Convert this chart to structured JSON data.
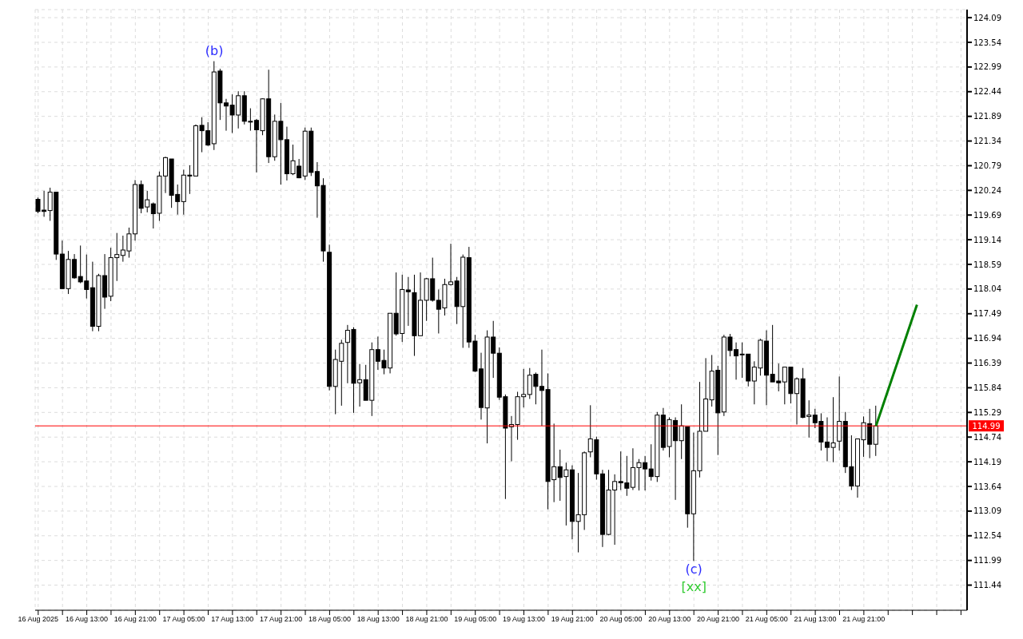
{
  "chart_data": {
    "type": "candlestick",
    "x": [
      "2025-08-16T05:00",
      "2025-08-16T06:00",
      "2025-08-16T07:00",
      "2025-08-16T08:00",
      "2025-08-16T09:00",
      "2025-08-16T10:00",
      "2025-08-16T11:00",
      "2025-08-16T12:00",
      "2025-08-16T13:00",
      "2025-08-16T14:00",
      "2025-08-16T15:00",
      "2025-08-16T16:00",
      "2025-08-16T17:00",
      "2025-08-16T18:00",
      "2025-08-16T19:00",
      "2025-08-16T20:00",
      "2025-08-16T21:00",
      "2025-08-16T22:00",
      "2025-08-16T23:00",
      "2025-08-17T00:00",
      "2025-08-17T01:00",
      "2025-08-17T02:00",
      "2025-08-17T03:00",
      "2025-08-17T04:00",
      "2025-08-17T05:00",
      "2025-08-17T06:00",
      "2025-08-17T07:00",
      "2025-08-17T08:00",
      "2025-08-17T09:00",
      "2025-08-17T10:00",
      "2025-08-17T11:00",
      "2025-08-17T12:00",
      "2025-08-17T13:00",
      "2025-08-17T14:00",
      "2025-08-17T15:00",
      "2025-08-17T16:00",
      "2025-08-17T17:00",
      "2025-08-17T18:00",
      "2025-08-17T19:00",
      "2025-08-17T20:00",
      "2025-08-17T21:00",
      "2025-08-17T22:00",
      "2025-08-17T23:00",
      "2025-08-18T00:00",
      "2025-08-18T01:00",
      "2025-08-18T02:00",
      "2025-08-18T03:00",
      "2025-08-18T04:00",
      "2025-08-18T05:00",
      "2025-08-18T06:00",
      "2025-08-18T07:00",
      "2025-08-18T08:00",
      "2025-08-18T09:00",
      "2025-08-18T10:00",
      "2025-08-18T11:00",
      "2025-08-18T12:00",
      "2025-08-18T13:00",
      "2025-08-18T14:00",
      "2025-08-18T15:00",
      "2025-08-18T16:00",
      "2025-08-18T17:00",
      "2025-08-18T18:00",
      "2025-08-18T19:00",
      "2025-08-18T20:00",
      "2025-08-18T21:00",
      "2025-08-18T22:00",
      "2025-08-18T23:00",
      "2025-08-19T00:00",
      "2025-08-19T01:00",
      "2025-08-19T02:00",
      "2025-08-19T03:00",
      "2025-08-19T04:00",
      "2025-08-19T05:00",
      "2025-08-19T06:00",
      "2025-08-19T07:00",
      "2025-08-19T08:00",
      "2025-08-19T09:00",
      "2025-08-19T10:00",
      "2025-08-19T11:00",
      "2025-08-19T12:00",
      "2025-08-19T13:00",
      "2025-08-19T14:00",
      "2025-08-19T15:00",
      "2025-08-19T16:00",
      "2025-08-19T17:00",
      "2025-08-19T18:00",
      "2025-08-19T19:00",
      "2025-08-19T20:00",
      "2025-08-19T21:00",
      "2025-08-19T22:00",
      "2025-08-19T23:00",
      "2025-08-20T00:00",
      "2025-08-20T01:00",
      "2025-08-20T02:00",
      "2025-08-20T03:00",
      "2025-08-20T04:00",
      "2025-08-20T05:00",
      "2025-08-20T06:00",
      "2025-08-20T07:00",
      "2025-08-20T08:00",
      "2025-08-20T09:00",
      "2025-08-20T10:00",
      "2025-08-20T11:00",
      "2025-08-20T12:00",
      "2025-08-20T13:00",
      "2025-08-20T14:00",
      "2025-08-20T15:00",
      "2025-08-20T16:00",
      "2025-08-20T17:00",
      "2025-08-20T18:00",
      "2025-08-20T19:00",
      "2025-08-20T20:00",
      "2025-08-20T21:00",
      "2025-08-20T22:00",
      "2025-08-20T23:00",
      "2025-08-21T00:00",
      "2025-08-21T01:00",
      "2025-08-21T02:00",
      "2025-08-21T03:00",
      "2025-08-21T04:00",
      "2025-08-21T05:00",
      "2025-08-21T06:00",
      "2025-08-21T07:00",
      "2025-08-21T08:00",
      "2025-08-21T09:00",
      "2025-08-21T10:00",
      "2025-08-21T11:00",
      "2025-08-21T12:00",
      "2025-08-21T13:00",
      "2025-08-21T14:00",
      "2025-08-21T15:00",
      "2025-08-21T16:00",
      "2025-08-21T17:00",
      "2025-08-21T18:00",
      "2025-08-21T19:00",
      "2025-08-21T20:00",
      "2025-08-21T21:00",
      "2025-08-21T22:00",
      "2025-08-21T23:00"
    ],
    "ohlc": [
      [
        120.04,
        120.08,
        119.73,
        119.77
      ],
      [
        119.8,
        120.23,
        119.65,
        119.77
      ],
      [
        119.79,
        120.3,
        119.56,
        120.2
      ],
      [
        120.2,
        120.2,
        118.69,
        118.82
      ],
      [
        118.82,
        119.12,
        118.05,
        118.05
      ],
      [
        118.05,
        118.89,
        117.93,
        118.7
      ],
      [
        118.7,
        118.82,
        118.27,
        118.29
      ],
      [
        118.32,
        119.01,
        118.17,
        118.2
      ],
      [
        118.22,
        118.81,
        117.83,
        118.03
      ],
      [
        118.07,
        118.65,
        117.1,
        117.21
      ],
      [
        117.21,
        118.38,
        117.1,
        118.34
      ],
      [
        118.34,
        118.82,
        117.6,
        117.86
      ],
      [
        117.88,
        118.96,
        117.77,
        118.74
      ],
      [
        118.74,
        119.29,
        118.22,
        118.81
      ],
      [
        118.79,
        119.23,
        118.65,
        118.91
      ],
      [
        118.89,
        119.41,
        118.74,
        119.27
      ],
      [
        119.27,
        120.47,
        119.12,
        120.37
      ],
      [
        120.37,
        120.46,
        119.73,
        119.84
      ],
      [
        119.87,
        120.23,
        119.75,
        120.03
      ],
      [
        119.94,
        119.97,
        119.39,
        119.72
      ],
      [
        119.73,
        120.66,
        119.56,
        120.56
      ],
      [
        120.56,
        120.99,
        120.18,
        120.97
      ],
      [
        120.94,
        120.94,
        119.85,
        120.13
      ],
      [
        120.15,
        120.37,
        119.7,
        119.99
      ],
      [
        119.99,
        120.7,
        119.7,
        120.58
      ],
      [
        120.58,
        120.8,
        120.16,
        120.56
      ],
      [
        120.56,
        121.71,
        120.56,
        121.68
      ],
      [
        121.69,
        121.87,
        121.09,
        121.57
      ],
      [
        121.57,
        121.76,
        121.23,
        121.25
      ],
      [
        121.28,
        123.12,
        121.14,
        122.88
      ],
      [
        122.9,
        122.95,
        121.81,
        122.19
      ],
      [
        122.19,
        122.28,
        121.57,
        122.12
      ],
      [
        122.14,
        122.38,
        121.52,
        121.92
      ],
      [
        121.92,
        122.45,
        121.62,
        122.35
      ],
      [
        122.35,
        122.45,
        121.71,
        121.78
      ],
      [
        121.78,
        122.07,
        121.57,
        121.78
      ],
      [
        121.8,
        121.83,
        120.64,
        121.59
      ],
      [
        121.57,
        122.29,
        121.47,
        122.28
      ],
      [
        122.28,
        122.93,
        120.85,
        120.99
      ],
      [
        120.99,
        121.93,
        120.9,
        121.78
      ],
      [
        121.78,
        122.19,
        120.37,
        121.37
      ],
      [
        121.37,
        121.66,
        120.46,
        120.61
      ],
      [
        120.61,
        121.26,
        120.58,
        120.9
      ],
      [
        120.78,
        120.94,
        120.51,
        120.52
      ],
      [
        120.56,
        121.64,
        120.47,
        121.56
      ],
      [
        121.56,
        121.64,
        120.56,
        120.64
      ],
      [
        120.66,
        120.87,
        119.63,
        120.34
      ],
      [
        120.35,
        120.51,
        118.65,
        118.89
      ],
      [
        118.86,
        119.03,
        115.78,
        115.87
      ],
      [
        115.87,
        116.69,
        115.25,
        116.47
      ],
      [
        116.43,
        116.91,
        115.44,
        116.83
      ],
      [
        116.85,
        117.24,
        115.94,
        117.12
      ],
      [
        117.14,
        117.19,
        115.28,
        115.94
      ],
      [
        115.95,
        116.37,
        115.42,
        116.02
      ],
      [
        116.02,
        116.35,
        115.56,
        115.56
      ],
      [
        115.56,
        116.85,
        115.21,
        116.69
      ],
      [
        116.69,
        116.98,
        116.24,
        116.43
      ],
      [
        116.45,
        116.69,
        116.14,
        116.28
      ],
      [
        116.28,
        117.5,
        116.16,
        117.5
      ],
      [
        117.5,
        118.41,
        117.0,
        117.04
      ],
      [
        117.05,
        118.36,
        116.86,
        118.03
      ],
      [
        118.02,
        118.31,
        117.22,
        117.98
      ],
      [
        117.96,
        118.36,
        116.55,
        117.0
      ],
      [
        117.0,
        118.41,
        117.0,
        117.79
      ],
      [
        117.79,
        118.29,
        117.33,
        118.27
      ],
      [
        118.27,
        118.74,
        117.76,
        117.79
      ],
      [
        117.79,
        118.03,
        117.05,
        117.59
      ],
      [
        117.62,
        118.27,
        117.45,
        118.14
      ],
      [
        118.14,
        119.05,
        118.12,
        118.2
      ],
      [
        118.22,
        118.31,
        117.26,
        117.65
      ],
      [
        117.65,
        118.81,
        116.73,
        118.75
      ],
      [
        118.74,
        118.98,
        116.73,
        116.86
      ],
      [
        116.88,
        117.02,
        116.19,
        116.21
      ],
      [
        116.26,
        116.62,
        115.13,
        115.4
      ],
      [
        115.39,
        117.12,
        114.6,
        116.97
      ],
      [
        116.97,
        117.33,
        116.06,
        116.61
      ],
      [
        116.61,
        116.74,
        115.57,
        115.63
      ],
      [
        115.64,
        115.69,
        113.36,
        114.94
      ],
      [
        114.97,
        115.21,
        114.2,
        115.02
      ],
      [
        115.02,
        115.75,
        114.68,
        115.64
      ],
      [
        115.64,
        116.26,
        115.4,
        115.69
      ],
      [
        115.69,
        116.28,
        115.59,
        116.12
      ],
      [
        116.14,
        116.18,
        115.47,
        115.87
      ],
      [
        115.87,
        116.69,
        114.99,
        115.78
      ],
      [
        115.8,
        116.16,
        113.13,
        113.75
      ],
      [
        113.79,
        115.04,
        113.29,
        114.08
      ],
      [
        114.08,
        114.46,
        113.32,
        113.84
      ],
      [
        113.86,
        114.17,
        112.77,
        114.01
      ],
      [
        114.01,
        114.11,
        112.46,
        112.86
      ],
      [
        112.86,
        113.94,
        112.17,
        113.01
      ],
      [
        113.01,
        114.42,
        112.67,
        114.39
      ],
      [
        114.41,
        115.45,
        114.29,
        114.7
      ],
      [
        114.68,
        114.75,
        113.79,
        113.92
      ],
      [
        113.92,
        114.01,
        112.29,
        112.57
      ],
      [
        112.57,
        114.01,
        112.55,
        113.56
      ],
      [
        113.56,
        113.91,
        112.34,
        113.75
      ],
      [
        113.75,
        114.42,
        113.56,
        113.72
      ],
      [
        113.72,
        114.32,
        113.43,
        113.6
      ],
      [
        113.62,
        114.49,
        113.56,
        114.06
      ],
      [
        114.06,
        114.25,
        113.55,
        114.17
      ],
      [
        114.17,
        114.32,
        113.55,
        114.03
      ],
      [
        114.03,
        114.58,
        113.77,
        113.86
      ],
      [
        113.86,
        115.3,
        113.74,
        115.23
      ],
      [
        115.23,
        115.39,
        114.44,
        114.51
      ],
      [
        114.53,
        115.18,
        114.29,
        115.13
      ],
      [
        115.11,
        115.18,
        113.34,
        114.66
      ],
      [
        114.66,
        115.47,
        114.25,
        114.99
      ],
      [
        114.97,
        114.97,
        112.72,
        113.03
      ],
      [
        113.03,
        114.84,
        111.98,
        113.99
      ],
      [
        113.99,
        115.97,
        113.84,
        114.87
      ],
      [
        114.87,
        116.5,
        114.87,
        115.59
      ],
      [
        115.57,
        116.57,
        115.42,
        116.21
      ],
      [
        116.23,
        116.33,
        114.34,
        115.28
      ],
      [
        115.3,
        117.02,
        115.21,
        116.97
      ],
      [
        116.97,
        117.04,
        116.54,
        116.67
      ],
      [
        116.69,
        116.85,
        116.02,
        116.55
      ],
      [
        116.59,
        116.85,
        116.06,
        116.59
      ],
      [
        116.59,
        116.59,
        115.87,
        115.99
      ],
      [
        115.99,
        116.43,
        115.47,
        116.3
      ],
      [
        116.28,
        116.93,
        116.11,
        116.9
      ],
      [
        116.88,
        117.12,
        115.45,
        116.12
      ],
      [
        116.14,
        117.24,
        115.97,
        115.97
      ],
      [
        115.99,
        116.38,
        115.76,
        115.95
      ],
      [
        115.97,
        116.3,
        115.47,
        116.3
      ],
      [
        116.3,
        116.3,
        115.49,
        115.71
      ],
      [
        115.71,
        116.07,
        115.02,
        116.04
      ],
      [
        116.04,
        116.28,
        115.16,
        115.18
      ],
      [
        115.2,
        115.56,
        114.73,
        115.23
      ],
      [
        115.23,
        115.37,
        114.94,
        115.06
      ],
      [
        115.09,
        115.27,
        114.44,
        114.63
      ],
      [
        114.63,
        115.18,
        114.2,
        114.51
      ],
      [
        114.51,
        115.63,
        114.18,
        114.61
      ],
      [
        114.65,
        116.09,
        114.44,
        115.09
      ],
      [
        115.09,
        115.3,
        113.94,
        114.08
      ],
      [
        114.08,
        114.78,
        113.56,
        113.65
      ],
      [
        113.65,
        114.7,
        113.39,
        114.7
      ],
      [
        114.68,
        115.2,
        114.3,
        115.06
      ],
      [
        115.04,
        115.37,
        114.27,
        114.58
      ],
      [
        114.58,
        115.44,
        114.32,
        114.99
      ]
    ],
    "series": [
      {
        "type": "line",
        "color": "#008000",
        "x": [
          "2025-08-21T23:00",
          "2025-08-22T05:45"
        ],
        "values": [
          114.99,
          117.69
        ]
      }
    ],
    "xlim": [
      "2025-08-16T04:30",
      "2025-08-22T14:00"
    ],
    "xticks": [
      {
        "value": "2025-08-16T05:00",
        "label": "16 Aug 2025"
      },
      {
        "value": "2025-08-16T09:00",
        "label": null
      },
      {
        "value": "2025-08-16T13:00",
        "label": "16 Aug 13:00"
      },
      {
        "value": "2025-08-16T17:00",
        "label": null
      },
      {
        "value": "2025-08-16T21:00",
        "label": "16 Aug 21:00"
      },
      {
        "value": "2025-08-17T01:00",
        "label": null
      },
      {
        "value": "2025-08-17T05:00",
        "label": "17 Aug 05:00"
      },
      {
        "value": "2025-08-17T09:00",
        "label": null
      },
      {
        "value": "2025-08-17T13:00",
        "label": "17 Aug 13:00"
      },
      {
        "value": "2025-08-17T17:00",
        "label": null
      },
      {
        "value": "2025-08-17T21:00",
        "label": "17 Aug 21:00"
      },
      {
        "value": "2025-08-18T01:00",
        "label": null
      },
      {
        "value": "2025-08-18T05:00",
        "label": "18 Aug 05:00"
      },
      {
        "value": "2025-08-18T09:00",
        "label": null
      },
      {
        "value": "2025-08-18T13:00",
        "label": "18 Aug 13:00"
      },
      {
        "value": "2025-08-18T17:00",
        "label": null
      },
      {
        "value": "2025-08-18T21:00",
        "label": "18 Aug 21:00"
      },
      {
        "value": "2025-08-19T01:00",
        "label": null
      },
      {
        "value": "2025-08-19T05:00",
        "label": "19 Aug 05:00"
      },
      {
        "value": "2025-08-19T09:00",
        "label": null
      },
      {
        "value": "2025-08-19T13:00",
        "label": "19 Aug 13:00"
      },
      {
        "value": "2025-08-19T17:00",
        "label": null
      },
      {
        "value": "2025-08-19T21:00",
        "label": "19 Aug 21:00"
      },
      {
        "value": "2025-08-20T01:00",
        "label": null
      },
      {
        "value": "2025-08-20T05:00",
        "label": "20 Aug 05:00"
      },
      {
        "value": "2025-08-20T09:00",
        "label": null
      },
      {
        "value": "2025-08-20T13:00",
        "label": "20 Aug 13:00"
      },
      {
        "value": "2025-08-20T17:00",
        "label": null
      },
      {
        "value": "2025-08-20T21:00",
        "label": "20 Aug 21:00"
      },
      {
        "value": "2025-08-21T01:00",
        "label": null
      },
      {
        "value": "2025-08-21T05:00",
        "label": "21 Aug 05:00"
      },
      {
        "value": "2025-08-21T09:00",
        "label": null
      },
      {
        "value": "2025-08-21T13:00",
        "label": "21 Aug 13:00"
      },
      {
        "value": "2025-08-21T17:00",
        "label": null
      },
      {
        "value": "2025-08-21T21:00",
        "label": "21 Aug 21:00"
      },
      {
        "value": "2025-08-22T01:00",
        "label": null
      },
      {
        "value": "2025-08-22T05:00",
        "label": null
      },
      {
        "value": "2025-08-22T09:00",
        "label": null
      },
      {
        "value": "2025-08-22T13:00",
        "label": null
      }
    ],
    "ylim": [
      110.88,
      124.27
    ],
    "yticks": [
      111.44,
      111.99,
      112.54,
      113.09,
      113.64,
      114.19,
      114.74,
      115.29,
      115.84,
      116.39,
      116.94,
      117.49,
      118.04,
      118.59,
      119.14,
      119.69,
      120.24,
      120.79,
      121.34,
      121.89,
      122.44,
      122.99,
      123.54,
      124.09
    ],
    "grid": true,
    "ref_lines": [
      {
        "axis": "y",
        "value": 114.99,
        "label": "114.99",
        "color": "#ff0000"
      }
    ],
    "annotations": [
      {
        "text": "(b)",
        "x": "2025-08-17T10:00",
        "y": 123.12
      },
      {
        "text": "(c)",
        "x": "2025-08-20T17:00",
        "y": 111.98
      },
      {
        "text": "[xx]",
        "x": "2025-08-20T17:00",
        "y": 111.98
      }
    ]
  }
}
